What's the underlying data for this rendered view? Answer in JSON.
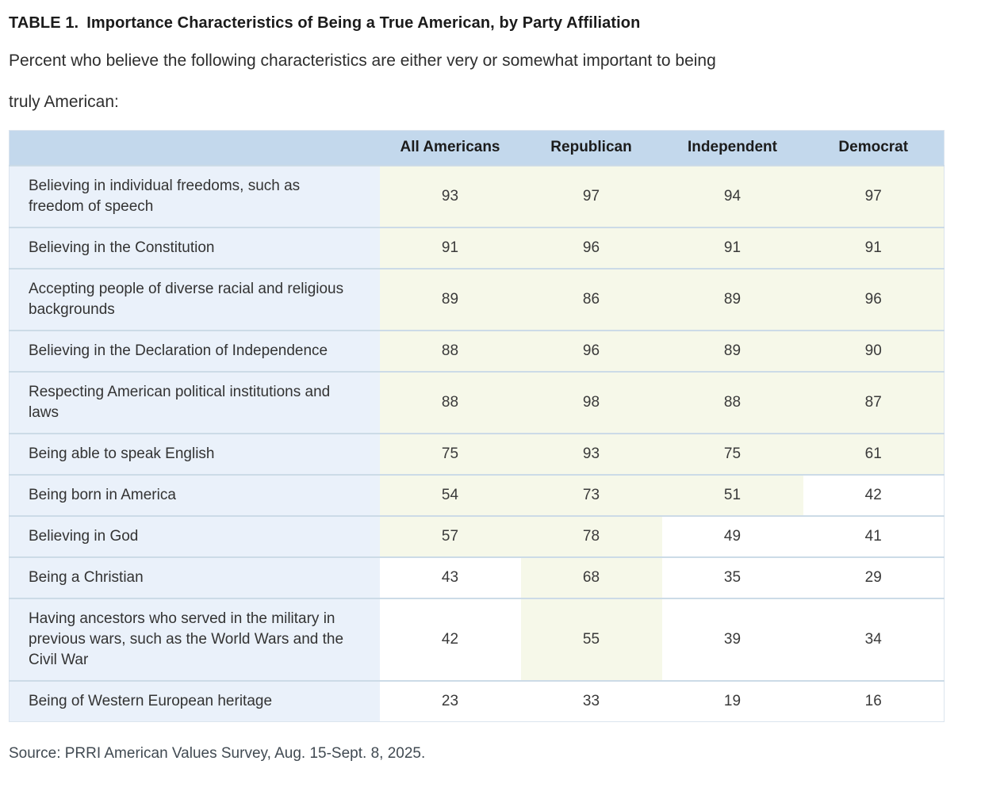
{
  "title": {
    "prefix": "TABLE 1.",
    "text": "Importance Characteristics of Being a True American, by Party Affiliation"
  },
  "subtitle": {
    "line1": "Percent who believe the following characteristics are either very or somewhat important to being",
    "line2": "truly American:"
  },
  "source": "Source: PRRI American Values Survey, Aug. 15-Sept. 8, 2025.",
  "colors": {
    "header_background": "#c3d8ec",
    "label_column_background": "#eaf1fa",
    "majority_cell_background": "#f6f8e9",
    "row_divider": "#ccdbe7",
    "text": "#333333"
  },
  "chart_data": {
    "type": "table",
    "title": "TABLE 1. Importance Characteristics of Being a True American, by Party Affiliation",
    "columns": [
      "All Americans",
      "Republican",
      "Independent",
      "Democrat"
    ],
    "rows": [
      {
        "label": "Believing in individual freedoms, such as freedom of speech",
        "values": [
          93,
          97,
          94,
          97
        ],
        "highlight": [
          true,
          true,
          true,
          true
        ]
      },
      {
        "label": "Believing in the Constitution",
        "values": [
          91,
          96,
          91,
          91
        ],
        "highlight": [
          true,
          true,
          true,
          true
        ]
      },
      {
        "label": "Accepting people of diverse racial and religious backgrounds",
        "values": [
          89,
          86,
          89,
          96
        ],
        "highlight": [
          true,
          true,
          true,
          true
        ]
      },
      {
        "label": "Believing in the Declaration of Independence",
        "values": [
          88,
          96,
          89,
          90
        ],
        "highlight": [
          true,
          true,
          true,
          true
        ]
      },
      {
        "label": "Respecting American political institutions and laws",
        "values": [
          88,
          98,
          88,
          87
        ],
        "highlight": [
          true,
          true,
          true,
          true
        ]
      },
      {
        "label": "Being able to speak English",
        "values": [
          75,
          93,
          75,
          61
        ],
        "highlight": [
          true,
          true,
          true,
          true
        ]
      },
      {
        "label": "Being born in America",
        "values": [
          54,
          73,
          51,
          42
        ],
        "highlight": [
          true,
          true,
          true,
          false
        ]
      },
      {
        "label": "Believing in God",
        "values": [
          57,
          78,
          49,
          41
        ],
        "highlight": [
          true,
          true,
          false,
          false
        ]
      },
      {
        "label": "Being a Christian",
        "values": [
          43,
          68,
          35,
          29
        ],
        "highlight": [
          false,
          true,
          false,
          false
        ]
      },
      {
        "label": "Having ancestors who served in the military in previous wars, such as the World Wars and the Civil War",
        "values": [
          42,
          55,
          39,
          34
        ],
        "highlight": [
          false,
          true,
          false,
          false
        ]
      },
      {
        "label": "Being of Western European heritage",
        "values": [
          23,
          33,
          19,
          16
        ],
        "highlight": [
          false,
          false,
          false,
          false
        ]
      }
    ]
  }
}
